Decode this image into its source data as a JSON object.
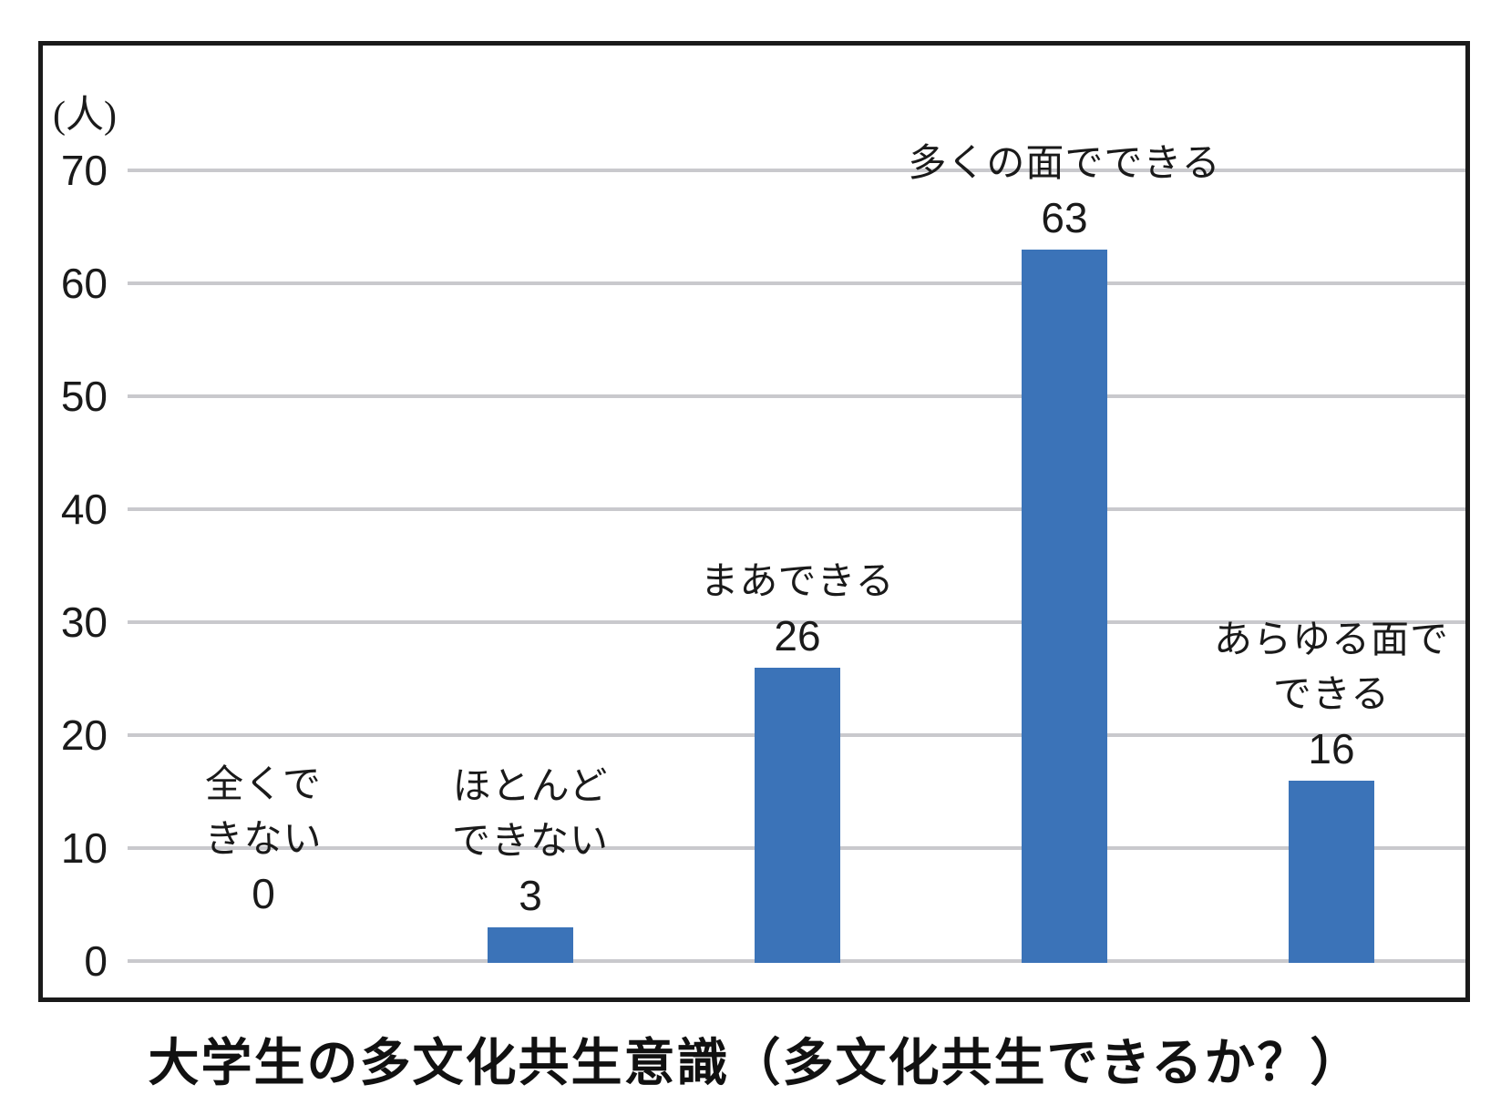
{
  "chart_data": {
    "type": "bar",
    "title": "大学生の多文化共生意識（多文化共生できるか？）",
    "ylabel": "(人)",
    "xlabel": "",
    "categories": [
      "全くできない",
      "ほとんどできない",
      "まあできる",
      "多くの面でできる",
      "あらゆる面でできる"
    ],
    "category_label_lines": [
      [
        "全くで",
        "きない"
      ],
      [
        "ほとんど",
        "できない"
      ],
      [
        "まあできる"
      ],
      [
        "多くの面でできる"
      ],
      [
        "あらゆる面で",
        "できる"
      ]
    ],
    "values": [
      0,
      3,
      26,
      63,
      16
    ],
    "value_labels": [
      "0",
      "3",
      "26",
      "63",
      "16"
    ],
    "ylim": [
      0,
      70
    ],
    "yticks": [
      0,
      10,
      20,
      30,
      40,
      50,
      60,
      70
    ],
    "grid": true,
    "legend": "none",
    "bar_color": "#3B73B8",
    "gridline_color": "#C9C9CD",
    "frame_color": "#1A1A1A",
    "text_color": "#1A1A1A"
  }
}
